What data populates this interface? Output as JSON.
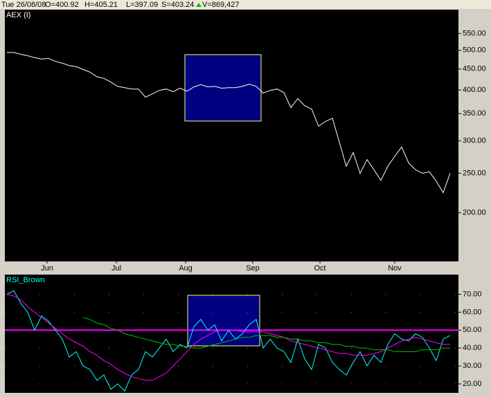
{
  "chart_data": [
    {
      "type": "line",
      "title": "AEX (I)",
      "info": [
        "Tue 26/08/08",
        "O=400.92",
        "H=405.21",
        "L=397.09",
        "S=403.24",
        "V=869,427"
      ],
      "series": [
        {
          "color": "#ffffff",
          "values": [
            494,
            494,
            489,
            485,
            480,
            476,
            478,
            470,
            465,
            459,
            456,
            449,
            442,
            431,
            427,
            418,
            408,
            405,
            402,
            402,
            384,
            391,
            399,
            402,
            396,
            404,
            397,
            407,
            412,
            407,
            408,
            404,
            405,
            405,
            408,
            413,
            408,
            393,
            399,
            402,
            394,
            362,
            381,
            366,
            359,
            326,
            335,
            341,
            298,
            260,
            281,
            250,
            270,
            255,
            240,
            260,
            275,
            290,
            265,
            255,
            250,
            252,
            239,
            224,
            250
          ]
        }
      ],
      "log_scale": true,
      "ylim": [
        152,
        629
      ],
      "yticks": [
        {
          "value": 550,
          "label": "550.00"
        },
        {
          "value": 500,
          "label": "500.00"
        },
        {
          "value": 450,
          "label": "450.00"
        },
        {
          "value": 400,
          "label": "400.00"
        },
        {
          "value": 350,
          "label": "350.00"
        },
        {
          "value": 300,
          "label": "300.00"
        },
        {
          "value": 250,
          "label": "250.00"
        },
        {
          "value": 200,
          "label": "200.00"
        }
      ],
      "xlim": [
        -0.3,
        65.2
      ],
      "xticks": [
        {
          "value": 5.8,
          "label": "Jun"
        },
        {
          "value": 15.8,
          "label": "Jul"
        },
        {
          "value": 25.8,
          "label": "Aug"
        },
        {
          "value": 35.5,
          "label": "Sep"
        },
        {
          "value": 45.2,
          "label": "Oct"
        },
        {
          "value": 56,
          "label": "Nov"
        }
      ]
    },
    {
      "type": "line",
      "title": "RSI_Brown",
      "series": [
        {
          "color": "#00ffff",
          "values": [
            70,
            72,
            65,
            60,
            50,
            58,
            55,
            50,
            45,
            35,
            38,
            30,
            28,
            22,
            25,
            17,
            20,
            16,
            25,
            28,
            38,
            35,
            40,
            45,
            38,
            42,
            40,
            52,
            56,
            50,
            53,
            44,
            50,
            45,
            48,
            53,
            56,
            40,
            45,
            40,
            38,
            32,
            45,
            34,
            28,
            42,
            40,
            32,
            28,
            25,
            32,
            38,
            30,
            36,
            32,
            42,
            48,
            45,
            44,
            48,
            46,
            40,
            33,
            45,
            47
          ]
        },
        {
          "color": "#ff00ff",
          "values": [
            70,
            69,
            67,
            63,
            60,
            57,
            54,
            51,
            48,
            45,
            43,
            41,
            38,
            36,
            33,
            31,
            28,
            26,
            24,
            23,
            22,
            22,
            24,
            26,
            30,
            34,
            38,
            42,
            45,
            47,
            49,
            50,
            50,
            50,
            49,
            49,
            49,
            49,
            48,
            47,
            46,
            44,
            43,
            42,
            41,
            40,
            39,
            38,
            37,
            37,
            36,
            36,
            36,
            37,
            38,
            40,
            42,
            44,
            45,
            46,
            45,
            44,
            43,
            42,
            42
          ]
        },
        {
          "color": "#00c000",
          "values": [
            null,
            null,
            null,
            null,
            null,
            null,
            null,
            null,
            null,
            null,
            null,
            57,
            56,
            54,
            53,
            51,
            50,
            48,
            47,
            46,
            45,
            44,
            43,
            42,
            42,
            41,
            41,
            40,
            40,
            41,
            42,
            43,
            44,
            45,
            46,
            46,
            47,
            47,
            47,
            46,
            46,
            45,
            45,
            44,
            44,
            43,
            43,
            42,
            42,
            41,
            41,
            40,
            40,
            39,
            39,
            39,
            38,
            38,
            38,
            38,
            39,
            39,
            39,
            40,
            40
          ]
        }
      ],
      "hline": 50,
      "hline_color": "#ff00ff",
      "grid": true,
      "ylim": [
        15,
        81
      ],
      "xlim": [
        -0.3,
        65.2
      ],
      "yticks": [
        {
          "value": 70,
          "label": "70.00"
        },
        {
          "value": 60,
          "label": "60.00"
        },
        {
          "value": 50,
          "label": "50.00"
        },
        {
          "value": 40,
          "label": "40.00"
        },
        {
          "value": 30,
          "label": "30.00"
        },
        {
          "value": 20,
          "label": "20.00"
        }
      ]
    }
  ]
}
